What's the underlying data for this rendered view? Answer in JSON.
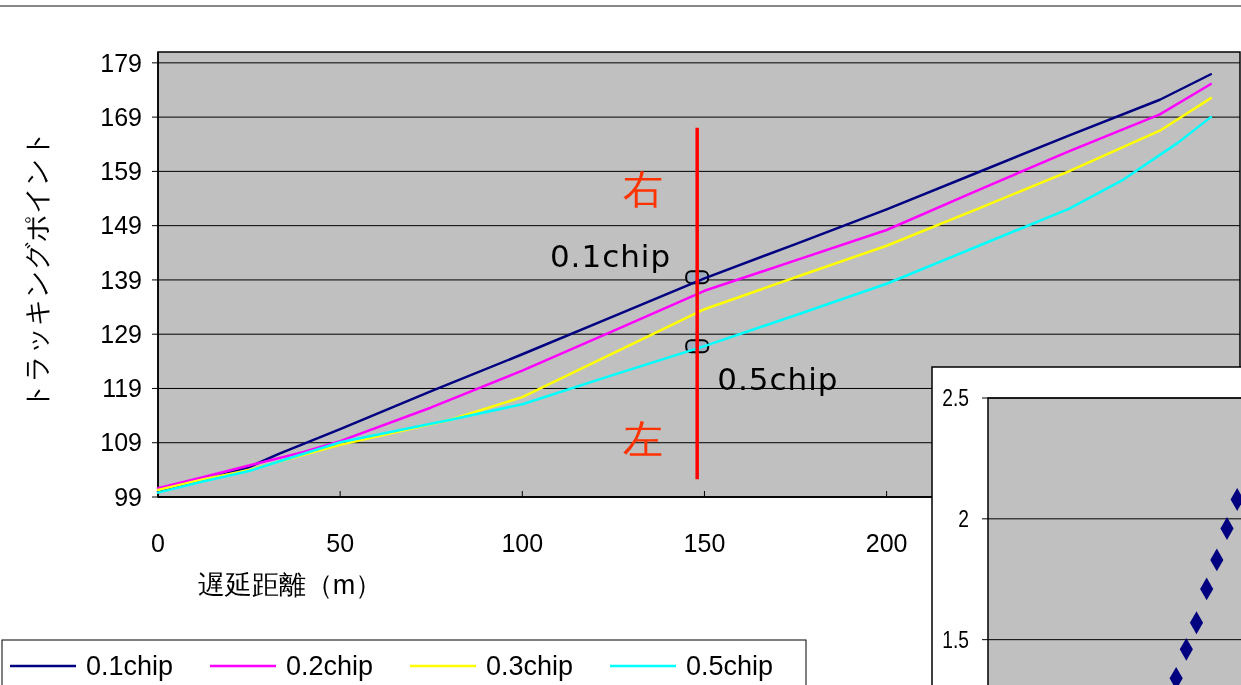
{
  "chart_data": [
    {
      "type": "line",
      "xlabel": "遅延距離（m）",
      "ylabel": "トラッキングポイント",
      "xlim": [
        0,
        297
      ],
      "xticks": [
        0,
        50,
        100,
        150,
        200
      ],
      "ylim": [
        99,
        181
      ],
      "yticks": [
        99,
        109,
        119,
        129,
        139,
        149,
        159,
        169,
        179
      ],
      "grid": "y",
      "legend": "bottom",
      "line_style": "solid",
      "marker": "none",
      "series": [
        {
          "name": "0.1chip",
          "color": "#000080",
          "x": [
            0,
            12,
            25,
            33,
            50,
            75,
            100,
            125,
            150,
            175,
            200,
            225,
            250,
            275,
            289
          ],
          "values": [
            100,
            102,
            104.5,
            106.9,
            111.5,
            118.5,
            125.3,
            132.3,
            139.3,
            145.6,
            152.0,
            158.8,
            165.6,
            172.2,
            176.9
          ]
        },
        {
          "name": "0.2chip",
          "color": "#ff00ff",
          "x": [
            0,
            12,
            25,
            40,
            50,
            75,
            100,
            125,
            150,
            175,
            200,
            225,
            250,
            275,
            289
          ],
          "values": [
            100.6,
            102.6,
            104.8,
            107.3,
            109.3,
            115.5,
            122.3,
            129.6,
            137.0,
            142.6,
            148.2,
            155.5,
            162.7,
            169.5,
            175.1
          ]
        },
        {
          "name": "0.3chip",
          "color": "#ffff00",
          "x": [
            0,
            12,
            25,
            50,
            80,
            100,
            125,
            150,
            175,
            200,
            225,
            250,
            275,
            289
          ],
          "values": [
            100.3,
            102.2,
            104,
            108.6,
            113.2,
            117.4,
            125.5,
            133.6,
            139.5,
            145.3,
            152.1,
            159.0,
            166.5,
            172.5
          ]
        },
        {
          "name": "0.5chip",
          "color": "#00ffff",
          "x": [
            0,
            12,
            25,
            50,
            80,
            100,
            125,
            150,
            175,
            200,
            225,
            250,
            265,
            280,
            289
          ],
          "values": [
            99.8,
            101.8,
            103.8,
            109.1,
            113.2,
            116.1,
            121.5,
            126.8,
            132.5,
            138.3,
            145.2,
            152.1,
            157.5,
            164.3,
            169.0
          ]
        }
      ],
      "ref_lines": [
        {
          "axis": "x",
          "value": 148,
          "color": "#ff0000"
        }
      ],
      "annotations": [
        "右",
        "左",
        {
          "text": "0.1chip",
          "x": 148,
          "y": 139.5
        },
        {
          "text": "0.5chip",
          "x": 148,
          "y": 126.8
        }
      ]
    },
    {
      "type": "scatter",
      "categories": [
        null,
        null,
        null,
        null,
        null,
        null,
        null,
        null,
        null,
        null,
        null,
        null,
        null,
        null,
        null,
        null,
        null,
        null,
        null,
        null,
        null,
        null,
        null,
        null,
        null
      ],
      "ylim": [
        1.3,
        2.5
      ],
      "yticks": [
        1.5,
        2,
        2.5
      ],
      "grid": "y",
      "marker": "diamond",
      "series": [
        {
          "color": "#000080",
          "values": [
            null,
            null,
            null,
            null,
            null,
            null,
            null,
            null,
            null,
            null,
            null,
            null,
            null,
            null,
            null,
            null,
            null,
            null,
            1.34,
            1.46,
            1.57,
            1.71,
            1.83,
            1.96,
            2.08
          ]
        }
      ]
    }
  ]
}
